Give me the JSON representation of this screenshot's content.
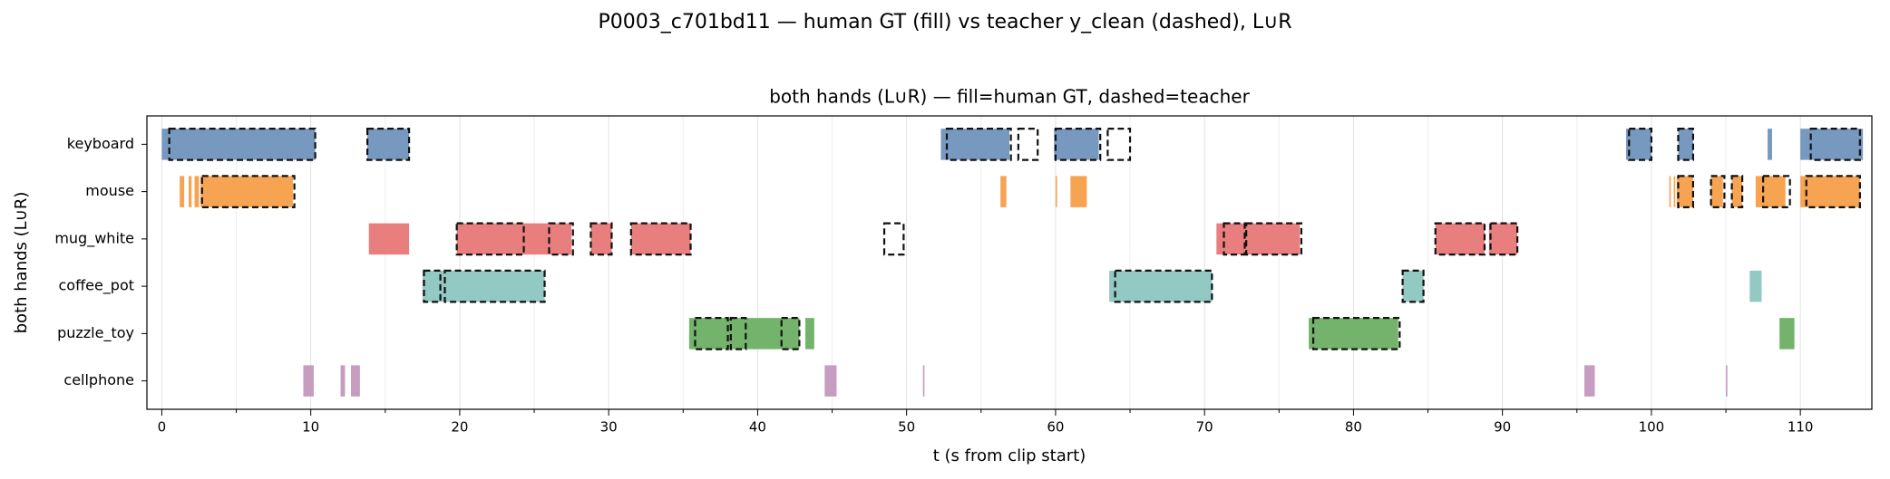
{
  "chart_data": {
    "type": "timeline",
    "title": "P0003_c701bd11 — human GT (fill) vs teacher y_clean (dashed), L∪R",
    "subtitle": "both hands (L∪R) — fill=human GT, dashed=teacher",
    "x_label": "t (s from clip start)",
    "y_label": "both hands (L∪R)",
    "xlim": [
      -1,
      114.8
    ],
    "xticks": [
      0,
      10,
      20,
      30,
      40,
      50,
      60,
      70,
      80,
      90,
      100,
      110
    ],
    "xminorticks": [
      5,
      15,
      25,
      35,
      45,
      55,
      65,
      75,
      85,
      95,
      105
    ],
    "grid": true,
    "series": [
      {
        "name": "keyboard",
        "color": "#7799c0",
        "values": [
          [
            0,
            10.3
          ],
          [
            13.8,
            16.6
          ],
          [
            52.3,
            56.9
          ],
          [
            59.9,
            62.9
          ],
          [
            98.3,
            100
          ],
          [
            101.8,
            102.8
          ],
          [
            107.8,
            108.1
          ],
          [
            110,
            114.2
          ]
        ],
        "teacher": [
          [
            0.5,
            10.3
          ],
          [
            13.8,
            16.6
          ],
          [
            52.7,
            57
          ],
          [
            57.5,
            58.8
          ],
          [
            60,
            63
          ],
          [
            63.5,
            65
          ],
          [
            98.5,
            100
          ],
          [
            101.8,
            102.8
          ],
          [
            110.7,
            114
          ]
        ]
      },
      {
        "name": "mouse",
        "color": "#f7a452",
        "values": [
          [
            1.2,
            1.5
          ],
          [
            1.8,
            2.0
          ],
          [
            2.2,
            2.5
          ],
          [
            2.6,
            8.8
          ],
          [
            56.3,
            56.7
          ],
          [
            60,
            60.1
          ],
          [
            61,
            62.1
          ],
          [
            101.2,
            101.3
          ],
          [
            101.5,
            101.6
          ],
          [
            101.7,
            102.8
          ],
          [
            104,
            104.8
          ],
          [
            105.4,
            106.1
          ],
          [
            107,
            109
          ],
          [
            110,
            114
          ]
        ],
        "teacher": [
          [
            2.7,
            8.9
          ],
          [
            101.8,
            102.8
          ],
          [
            104,
            104.9
          ],
          [
            105.4,
            106.1
          ],
          [
            107.5,
            109.3
          ],
          [
            110.4,
            114
          ]
        ]
      },
      {
        "name": "mug_white",
        "color": "#e97e7e",
        "values": [
          [
            13.9,
            16.6
          ],
          [
            19.8,
            27.5
          ],
          [
            28.8,
            30.2
          ],
          [
            31.5,
            35.5
          ],
          [
            70.8,
            76.4
          ],
          [
            85.5,
            88.8
          ],
          [
            89.1,
            91
          ]
        ],
        "teacher": [
          [
            19.8,
            24.3
          ],
          [
            26,
            27.6
          ],
          [
            28.8,
            30.2
          ],
          [
            31.5,
            35.5
          ],
          [
            48.5,
            49.8
          ],
          [
            71.3,
            72.7
          ],
          [
            72.8,
            76.5
          ],
          [
            85.5,
            88.8
          ],
          [
            89.2,
            91
          ]
        ]
      },
      {
        "name": "coffee_pot",
        "color": "#93c9c3",
        "values": [
          [
            17.5,
            25.7
          ],
          [
            63.6,
            70.5
          ],
          [
            83.3,
            84.7
          ],
          [
            106.6,
            107.4
          ]
        ],
        "teacher": [
          [
            17.6,
            18.7
          ],
          [
            19,
            25.7
          ],
          [
            64,
            70.5
          ],
          [
            83.3,
            84.7
          ]
        ]
      },
      {
        "name": "puzzle_toy",
        "color": "#74b36b",
        "values": [
          [
            35.4,
            42.8
          ],
          [
            43.2,
            43.8
          ],
          [
            77,
            83
          ],
          [
            108.6,
            109.6
          ]
        ],
        "teacher": [
          [
            35.8,
            38
          ],
          [
            38.2,
            39.2
          ],
          [
            41.6,
            42.8
          ],
          [
            77.3,
            83.1
          ]
        ]
      },
      {
        "name": "cellphone",
        "color": "#c69cc0",
        "values": [
          [
            9.5,
            10.2
          ],
          [
            12,
            12.3
          ],
          [
            12.7,
            13.3
          ],
          [
            44.5,
            45.3
          ],
          [
            51.1,
            51.2
          ],
          [
            95.5,
            96.2
          ],
          [
            105,
            105.1
          ]
        ],
        "teacher": []
      }
    ]
  }
}
